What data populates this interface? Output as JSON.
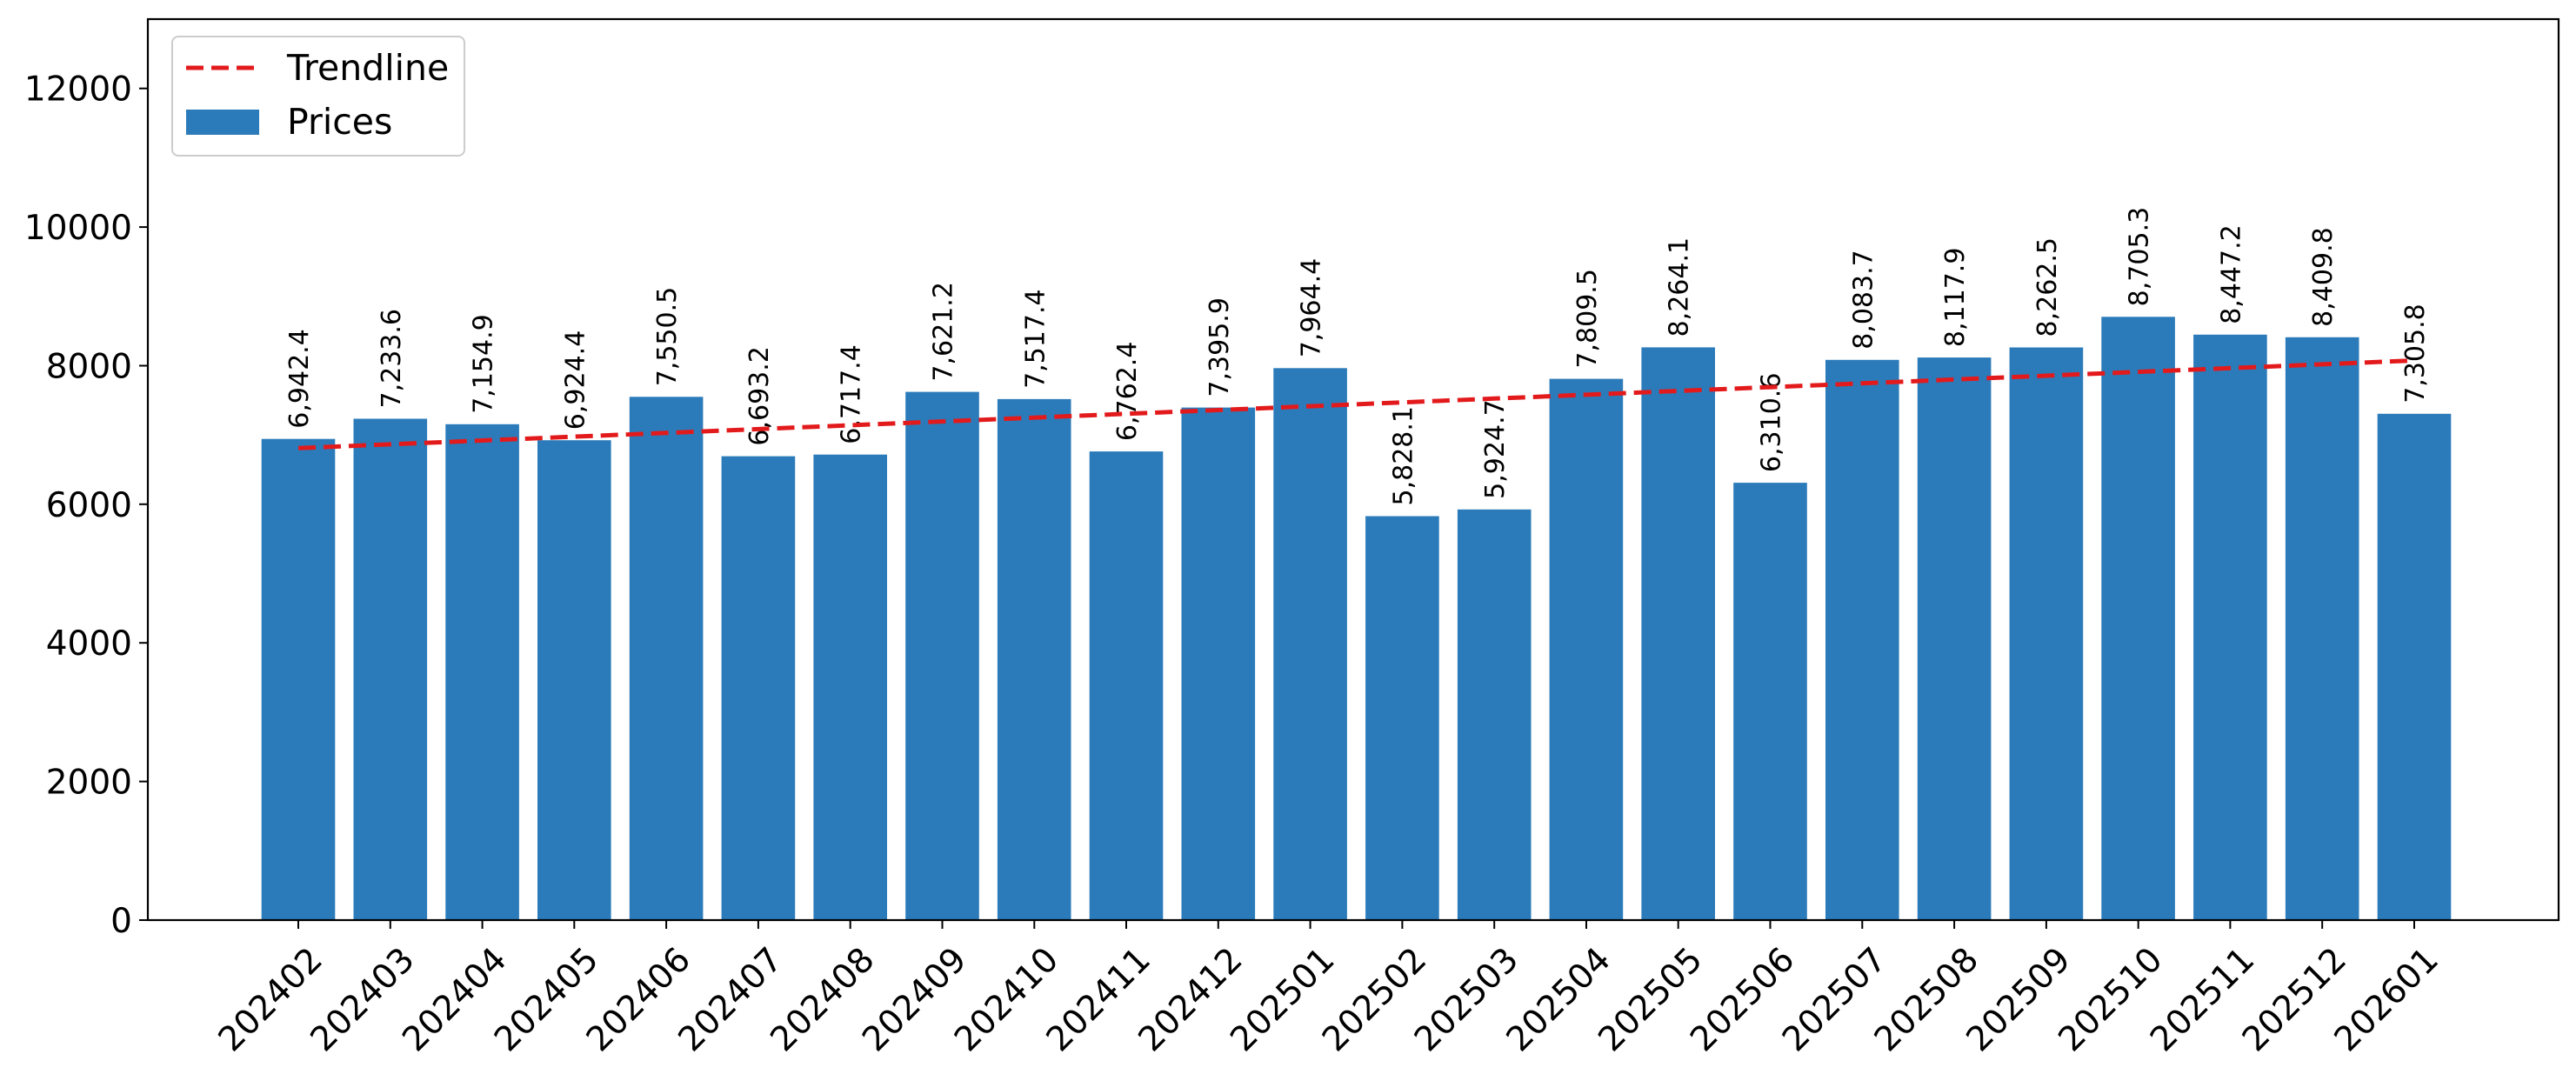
{
  "chart_data": {
    "type": "bar",
    "title": "",
    "xlabel": "",
    "ylabel": "",
    "ylim": [
      0,
      13000
    ],
    "yticks": [
      "0",
      "2000",
      "4000",
      "6000",
      "8000",
      "10000",
      "12000"
    ],
    "grid": false,
    "legend": {
      "placement": "top-left",
      "entries": [
        {
          "label": "Trendline",
          "style": "dashed-line",
          "color": "#e31a1c"
        },
        {
          "label": "Prices",
          "style": "patch",
          "color": "#2b7bba"
        }
      ]
    },
    "categories": [
      "202402",
      "202403",
      "202404",
      "202405",
      "202406",
      "202407",
      "202408",
      "202409",
      "202410",
      "202411",
      "202412",
      "202501",
      "202502",
      "202503",
      "202504",
      "202505",
      "202506",
      "202507",
      "202508",
      "202509",
      "202510",
      "202511",
      "202512",
      "202601"
    ],
    "series": [
      {
        "name": "Prices",
        "color": "#2b7bba",
        "values": [
          6942.4,
          7233.6,
          7154.9,
          6924.4,
          7550.5,
          6693.2,
          6717.4,
          7621.2,
          7517.4,
          6762.4,
          7395.9,
          7964.4,
          5828.1,
          5924.7,
          7809.5,
          8264.1,
          6310.6,
          8083.7,
          8117.9,
          8262.5,
          8705.3,
          8447.2,
          8409.8,
          7305.8
        ],
        "labels": [
          "6,942.4",
          "7,233.6",
          "7,154.9",
          "6,924.4",
          "7,550.5",
          "6,693.2",
          "6,717.4",
          "7,621.2",
          "7,517.4",
          "6,762.4",
          "7,395.9",
          "7,964.4",
          "5,828.1",
          "5,924.7",
          "7,809.5",
          "8,264.1",
          "6,310.6",
          "8,083.7",
          "8,117.9",
          "8,262.5",
          "8,705.3",
          "8,447.2",
          "8,409.8",
          "7,305.8"
        ]
      },
      {
        "name": "Trendline",
        "color": "#e31a1c",
        "type": "line",
        "values": [
          6810,
          6865,
          6920,
          6975,
          7030,
          7085,
          7140,
          7195,
          7250,
          7305,
          7360,
          7415,
          7470,
          7525,
          7580,
          7635,
          7690,
          7745,
          7800,
          7855,
          7910,
          7965,
          8020,
          8075
        ]
      }
    ]
  }
}
